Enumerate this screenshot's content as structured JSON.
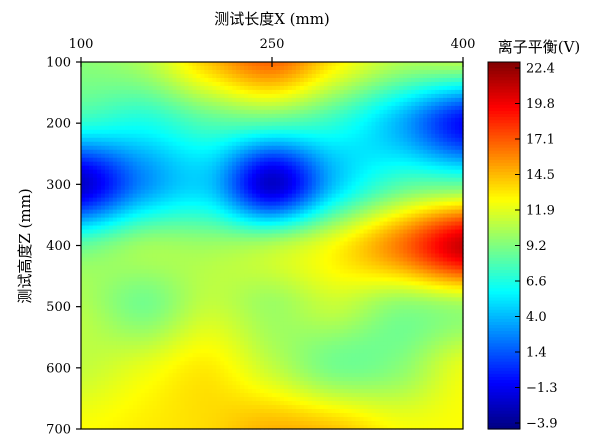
{
  "chart_data": {
    "type": "heatmap",
    "title": "",
    "xlabel": "测试长度X (mm)",
    "ylabel": "测试高度Z (mm)",
    "colorbar_label": "离子平衡(V)",
    "x_axis_position": "top",
    "xlim": [
      100,
      400
    ],
    "ylim": [
      100,
      700
    ],
    "y_inverted": true,
    "x_ticks": [
      100,
      250,
      400
    ],
    "y_ticks": [
      100,
      200,
      300,
      400,
      500,
      600,
      700
    ],
    "colorbar_ticks": [
      22.4,
      19.8,
      17.1,
      14.5,
      11.9,
      9.2,
      6.6,
      4.0,
      1.4,
      -1.3,
      -3.9
    ],
    "colorbar_range": [
      -3.9,
      22.4
    ],
    "colormap": "jet",
    "x": [
      100,
      150,
      200,
      250,
      300,
      350,
      400
    ],
    "y": [
      100,
      200,
      300,
      400,
      500,
      600,
      700
    ],
    "z": [
      [
        9.5,
        10.5,
        14.0,
        16.5,
        13.0,
        10.5,
        10.5
      ],
      [
        7.0,
        6.5,
        8.0,
        8.0,
        7.0,
        4.0,
        -0.5
      ],
      [
        -2.0,
        3.0,
        4.5,
        -2.0,
        4.5,
        8.0,
        8.5
      ],
      [
        8.5,
        10.0,
        10.0,
        10.5,
        12.5,
        16.0,
        20.5
      ],
      [
        10.5,
        9.0,
        11.0,
        10.0,
        11.0,
        9.5,
        10.0
      ],
      [
        11.0,
        12.0,
        13.0,
        11.0,
        9.0,
        9.5,
        12.0
      ],
      [
        12.5,
        13.0,
        13.5,
        14.5,
        14.0,
        12.5,
        12.5
      ]
    ]
  }
}
